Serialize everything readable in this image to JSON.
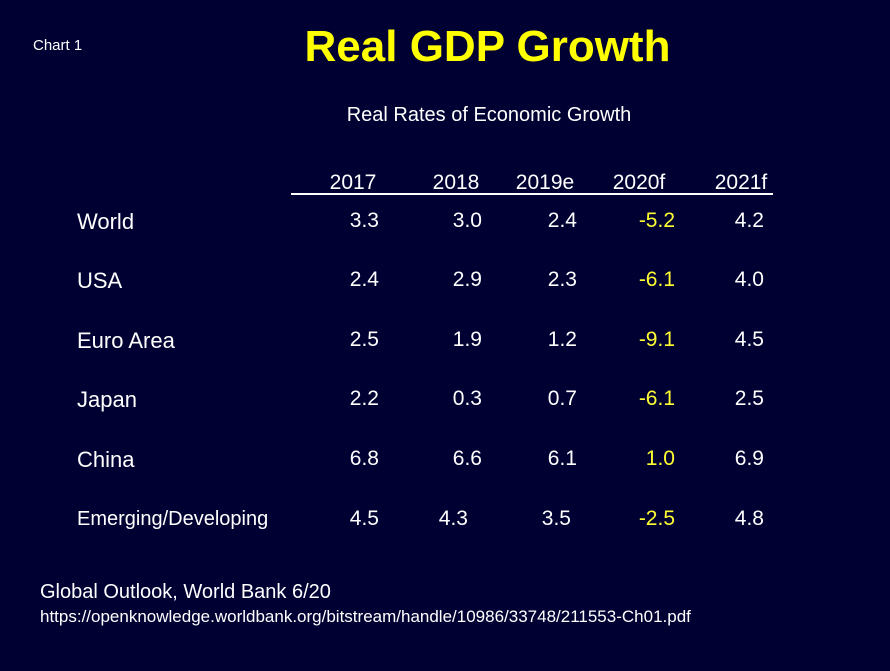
{
  "chart_label": "Chart 1",
  "title": "Real GDP Growth",
  "subtitle": "Real Rates of Economic Growth",
  "chart_data": {
    "type": "table",
    "title": "Real GDP Growth",
    "subtitle": "Real Rates of Economic Growth",
    "columns": [
      "2017",
      "2018",
      "2019e",
      "2020f",
      "2021f"
    ],
    "highlight_column": "2020f",
    "highlight_color": "#ffff33",
    "rows": [
      {
        "label": "World",
        "values": [
          "3.3",
          "3.0",
          "2.4",
          "-5.2",
          "4.2"
        ]
      },
      {
        "label": "USA",
        "values": [
          "2.4",
          "2.9",
          "2.3",
          "-6.1",
          "4.0"
        ]
      },
      {
        "label": "Euro Area",
        "values": [
          "2.5",
          "1.9",
          "1.2",
          "-9.1",
          "4.5"
        ]
      },
      {
        "label": "Japan",
        "values": [
          "2.2",
          "0.3",
          "0.7",
          "-6.1",
          "2.5"
        ]
      },
      {
        "label": "China",
        "values": [
          "6.8",
          "6.6",
          "6.1",
          "1.0",
          "6.9"
        ]
      },
      {
        "label": "Emerging/Developing",
        "values": [
          "4.5",
          "4.3",
          "3.5",
          "-2.5",
          "4.8"
        ]
      }
    ]
  },
  "source": {
    "line1": "Global Outlook, World Bank  6/20",
    "url": "https://openknowledge.worldbank.org/bitstream/handle/10986/33748/211553-Ch01.pdf"
  },
  "colors": {
    "background": "#000033",
    "title": "#ffff00",
    "text": "#ffffff"
  }
}
